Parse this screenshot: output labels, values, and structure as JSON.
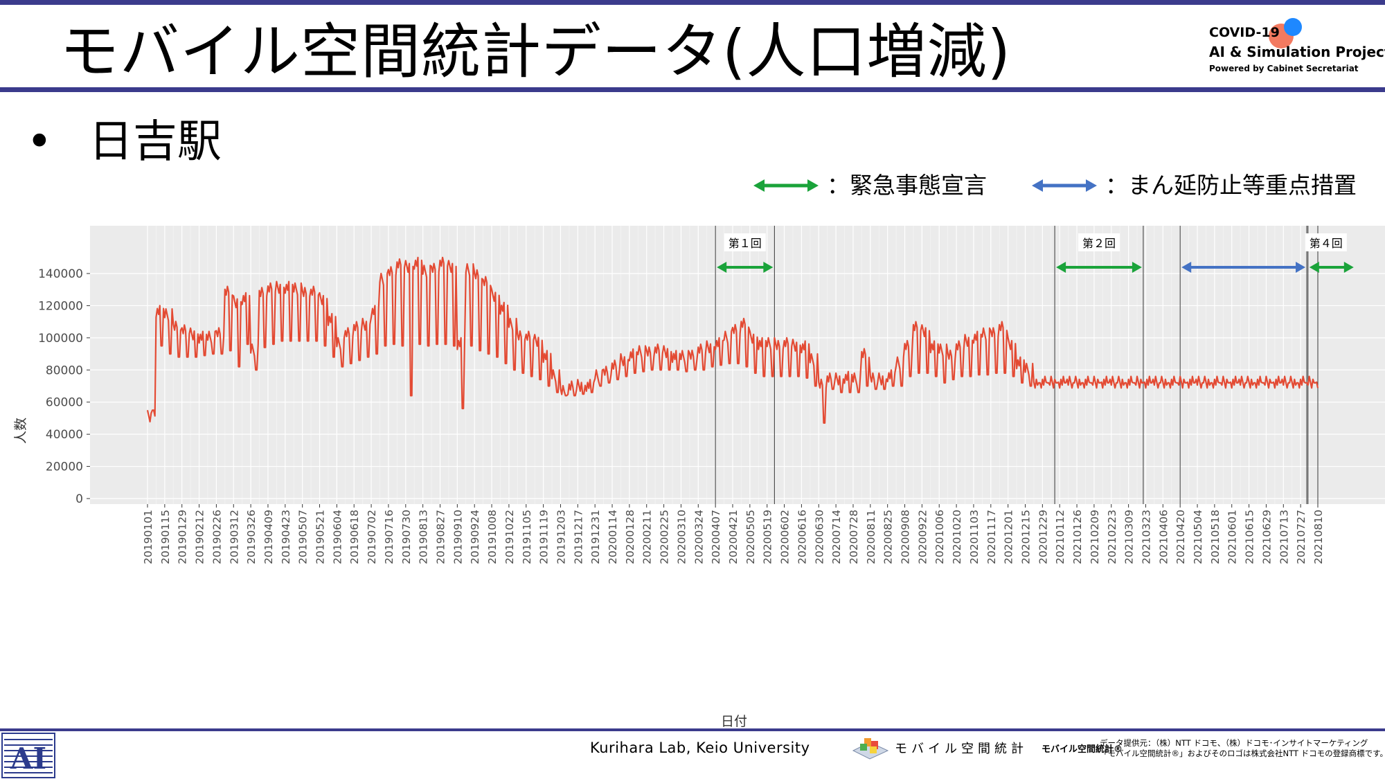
{
  "slide": {
    "title": "モバイル空間統計データ(人口増減)",
    "bullet": "•",
    "subtitle": "日吉駅",
    "colors": {
      "accent_bar": "#3b3b8c",
      "line": "#e34a33",
      "panel": "#ebebeb",
      "emergency_arrow": "#1aa33a",
      "priority_arrow": "#4472c4"
    }
  },
  "logo": {
    "line1": "COVID-19",
    "line2": "AI & Simulation Project",
    "line3": "Powered by Cabinet Secretariat"
  },
  "legend": {
    "emergency": "：緊急事態宣言",
    "priority": "：まん延防止等重点措置"
  },
  "footer": {
    "logo_icon": "keio-ai-logo-icon",
    "center": "Kurihara Lab, Keio University",
    "mobile_name": "モバイル空間統計",
    "mobile_mark": "モバイル空間統計®",
    "credit_line1": "データ提供元：（株）NTT ドコモ、（株）ドコモ･インサイトマーケティング",
    "credit_line2": "「モバイル空間統計®」およびそのロゴは株式会社NTT ドコモの登録商標です。"
  },
  "chart_data": {
    "type": "line",
    "xlabel": "日付",
    "ylabel": "人数",
    "ylim": [
      0,
      150000
    ],
    "yticks": [
      0,
      20000,
      40000,
      60000,
      80000,
      100000,
      120000,
      140000
    ],
    "grid": true,
    "x_ticks": [
      "20190101",
      "20190115",
      "20190129",
      "20190212",
      "20190226",
      "20190312",
      "20190326",
      "20190409",
      "20190423",
      "20190507",
      "20190521",
      "20190604",
      "20190618",
      "20190702",
      "20190716",
      "20190730",
      "20190813",
      "20190827",
      "20190910",
      "20190924",
      "20191008",
      "20191022",
      "20191105",
      "20191119",
      "20191203",
      "20191217",
      "20191231",
      "20200114",
      "20200128",
      "20200211",
      "20200225",
      "20200310",
      "20200324",
      "20200407",
      "20200421",
      "20200505",
      "20200519",
      "20200602",
      "20200616",
      "20200630",
      "20200714",
      "20200728",
      "20200811",
      "20200825",
      "20200908",
      "20200922",
      "20201006",
      "20201020",
      "20201103",
      "20201117",
      "20201201",
      "20201215",
      "20201229",
      "20210112",
      "20210126",
      "20210209",
      "20210223",
      "20210309",
      "20210323",
      "20210406",
      "20210420",
      "20210504",
      "20210518",
      "20210601",
      "20210615",
      "20210629",
      "20210713",
      "20210727",
      "20210810"
    ],
    "series": [
      {
        "color": "#e34a33",
        "weekly_high": [
          55000,
          120000,
          118000,
          112000,
          108000,
          106000,
          104000,
          104000,
          108000,
          132000,
          126000,
          128000,
          96000,
          133000,
          134000,
          135000,
          135000,
          134000,
          133000,
          132000,
          128000,
          115000,
          100000,
          108000,
          110000,
          112000,
          120000,
          140000,
          146000,
          149000,
          148000,
          150000,
          145000,
          148000,
          150000,
          148000,
          100000,
          146000,
          144000,
          138000,
          130000,
          122000,
          112000,
          106000,
          104000,
          102000,
          92000,
          80000,
          72000,
          73000,
          74000,
          74000,
          80000,
          84000,
          86000,
          90000,
          93000,
          95000,
          96000,
          96000,
          95000,
          92000,
          92000,
          94000,
          96000,
          98000,
          100000,
          104000,
          110000,
          112000,
          104000,
          100000,
          100000,
          100000,
          100000,
          99000,
          98000,
          90000,
          76000,
          78000,
          78000,
          79000,
          78000,
          95000,
          78000,
          78000,
          80000,
          88000,
          100000,
          110000,
          108000,
          98000,
          96000,
          94000,
          98000,
          102000,
          104000,
          106000,
          108000,
          110000,
          100000,
          88000,
          84000,
          76000
        ],
        "weekly_low": [
          55000,
          95000,
          90000,
          88000,
          88000,
          88000,
          89000,
          90000,
          90000,
          92000,
          82000,
          96000,
          80000,
          94000,
          96000,
          98000,
          98000,
          98000,
          98000,
          98000,
          95000,
          88000,
          82000,
          84000,
          86000,
          88000,
          90000,
          95000,
          96000,
          95000,
          64000,
          96000,
          95000,
          96000,
          96000,
          95000,
          56000,
          95000,
          92000,
          90000,
          88000,
          84000,
          80000,
          78000,
          76000,
          74000,
          70000,
          66000,
          64000,
          64000,
          65000,
          66000,
          70000,
          72000,
          74000,
          76000,
          78000,
          79000,
          80000,
          80000,
          80000,
          80000,
          79000,
          80000,
          80000,
          82000,
          83000,
          84000,
          84000,
          82000,
          78000,
          76000,
          76000,
          76000,
          76000,
          76000,
          75000,
          70000,
          47000,
          68000,
          66000,
          66000,
          66000,
          70000,
          68000,
          68000,
          70000,
          70000,
          76000,
          78000,
          78000,
          76000,
          72000,
          74000,
          76000,
          76000,
          77000,
          77000,
          78000,
          78000,
          76000,
          72000,
          70000,
          72000
        ]
      }
    ],
    "events": [
      {
        "label": "第１回",
        "type": "emergency",
        "start": "20200407",
        "end": "20200525"
      },
      {
        "label": "第２回",
        "type": "emergency",
        "start": "20210108",
        "end": "20210321"
      },
      {
        "type": "priority",
        "start": "20210420",
        "end": "20210801"
      },
      {
        "label": "第４回",
        "type": "emergency",
        "start": "20210802",
        "end": "20210810"
      }
    ]
  }
}
